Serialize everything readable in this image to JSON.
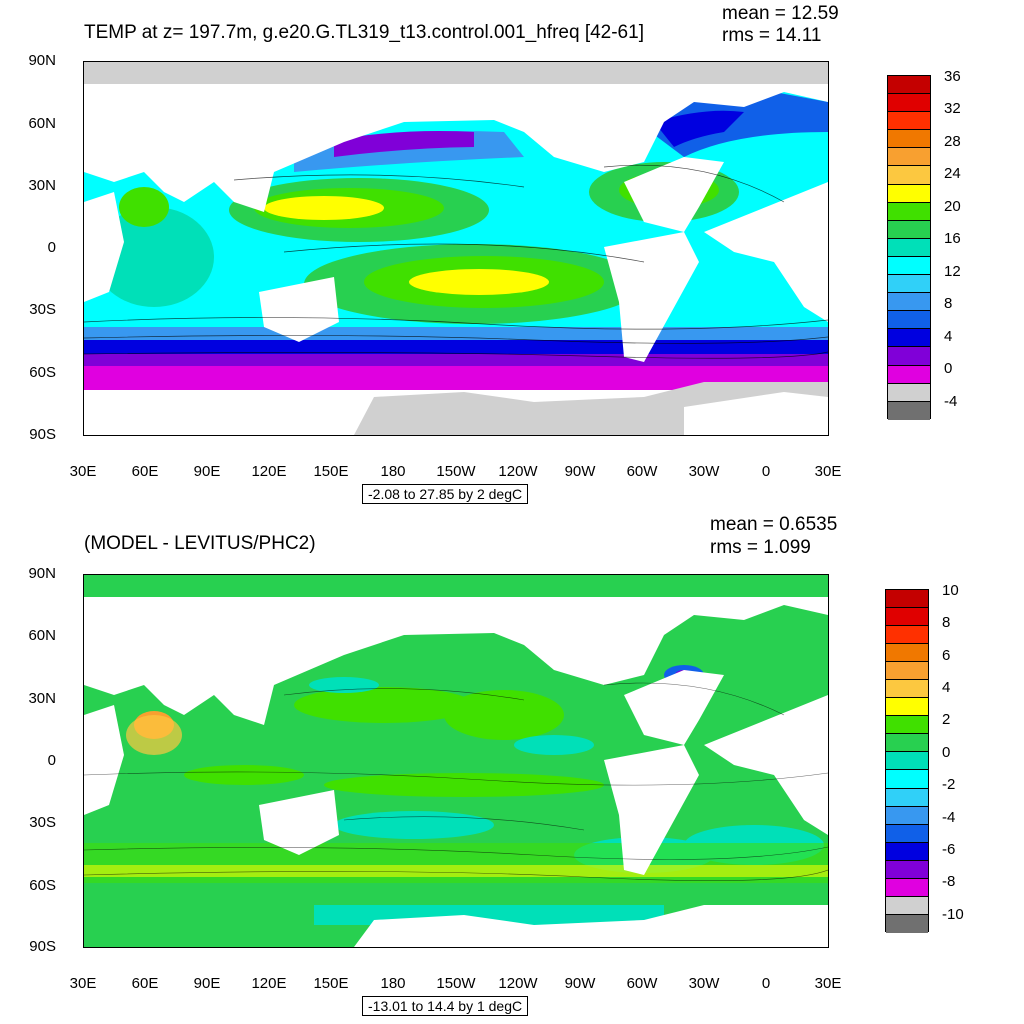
{
  "top": {
    "title": "TEMP at z= 197.7m, g.e20.G.TL319_t13.control.001_hfreq [42-61]",
    "mean": "mean = 12.59",
    "rms": "rms = 14.11",
    "range": "-2.08 to 27.85 by 2 degC",
    "colorbar": {
      "labels": [
        "36",
        "32",
        "28",
        "24",
        "20",
        "16",
        "12",
        "8",
        "4",
        "0",
        "-4"
      ],
      "colors": [
        "#c40000",
        "#e00000",
        "#ff3000",
        "#f07800",
        "#f8a030",
        "#fcc840",
        "#ffff00",
        "#40e000",
        "#28d050",
        "#00e0b8",
        "#00ffff",
        "#30d0f8",
        "#3898f0",
        "#1060e8",
        "#0000e0",
        "#8000d8",
        "#e000e0",
        "#d0d0d0",
        "#707070"
      ]
    }
  },
  "bottom": {
    "title": "(MODEL - LEVITUS/PHC2)",
    "mean": "mean = 0.6535",
    "rms": "rms = 1.099",
    "range": "-13.01 to 14.4 by 1 degC",
    "colorbar": {
      "labels": [
        "10",
        "8",
        "6",
        "4",
        "2",
        "0",
        "-2",
        "-4",
        "-6",
        "-8",
        "-10"
      ],
      "colors": [
        "#c40000",
        "#e00000",
        "#ff3000",
        "#f07800",
        "#f8a030",
        "#fcc840",
        "#ffff00",
        "#40e000",
        "#28d050",
        "#00e0b8",
        "#00ffff",
        "#30d0f8",
        "#3898f0",
        "#1060e8",
        "#0000e0",
        "#8000d8",
        "#e000e0",
        "#d0d0d0",
        "#707070"
      ]
    }
  },
  "axes": {
    "lat_labels": [
      "90N",
      "60N",
      "30N",
      "0",
      "30S",
      "60S",
      "90S"
    ],
    "lon_labels": [
      "30E",
      "60E",
      "90E",
      "120E",
      "150E",
      "180",
      "150W",
      "120W",
      "90W",
      "60W",
      "30W",
      "0",
      "30E"
    ]
  }
}
